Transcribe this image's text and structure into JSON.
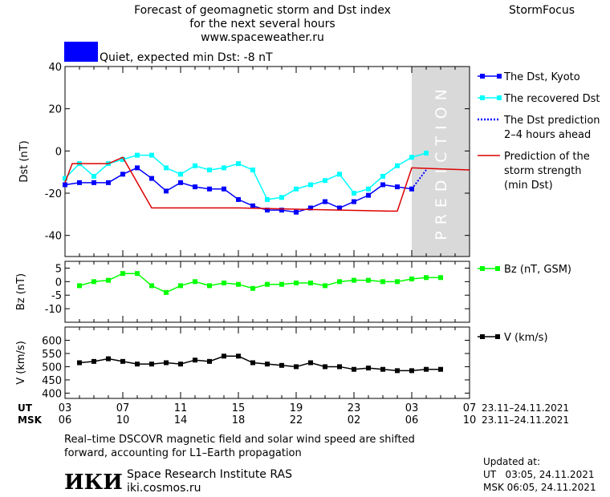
{
  "header": {
    "title_lines": [
      "Forecast of geomagnetic storm and Dst index",
      "for the next several hours",
      "www.spaceweather.ru"
    ],
    "brand": "StormFocus",
    "status_text": "Quiet, expected min Dst: -8 nT",
    "status_color": "#0000ff"
  },
  "prediction_label": "PREDICTION",
  "time_axis": {
    "ut_label": "UT",
    "msk_label": "MSK",
    "ut_ticks": [
      "03",
      "07",
      "11",
      "15",
      "19",
      "23",
      "03",
      "07"
    ],
    "msk_ticks": [
      "06",
      "10",
      "14",
      "18",
      "22",
      "02",
      "06",
      "10"
    ],
    "ut_range": "23.11–24.11.2021",
    "msk_range": "23.11–24.11.2021"
  },
  "chart_data": [
    {
      "type": "line",
      "ylabel": "Dst (nT)",
      "ylim": [
        -50,
        40
      ],
      "yticks": [
        40,
        20,
        0,
        -20,
        -40
      ],
      "xlim": [
        0,
        28
      ],
      "prediction_window": [
        24,
        28
      ],
      "series": [
        {
          "name": "The Dst, Kyoto",
          "color": "#0000ff",
          "marker": "square",
          "x": [
            0,
            1,
            2,
            3,
            4,
            5,
            6,
            7,
            8,
            9,
            10,
            11,
            12,
            13,
            14,
            15,
            16,
            17,
            18,
            19,
            20,
            21,
            22,
            23,
            24
          ],
          "values": [
            -16,
            -15,
            -15,
            -15,
            -11,
            -8,
            -13,
            -19,
            -15,
            -17,
            -18,
            -18,
            -23,
            -26,
            -28,
            -28,
            -29,
            -27,
            -24,
            -27,
            -24,
            -21,
            -16,
            -17,
            -18
          ]
        },
        {
          "name": "The recovered Dst",
          "color": "#00ffff",
          "marker": "square",
          "x": [
            0,
            1,
            2,
            3,
            4,
            5,
            6,
            7,
            8,
            9,
            10,
            11,
            12,
            13,
            14,
            15,
            16,
            17,
            18,
            19,
            20,
            21,
            22,
            23,
            24,
            25
          ],
          "values": [
            -13,
            -6,
            -12,
            -6,
            -4,
            -2,
            -2,
            -8,
            -11,
            -7,
            -9,
            -8,
            -6,
            -9,
            -23,
            -22,
            -18,
            -16,
            -14,
            -11,
            -20,
            -18,
            -12,
            -7,
            -3,
            -1
          ]
        },
        {
          "name": "The Dst prediction 2–4 hours ahead",
          "color": "#0000ff",
          "style": "dotted",
          "x": [
            24,
            25
          ],
          "values": [
            -18,
            -9
          ]
        },
        {
          "name": "Prediction of the storm strength (min Dst)",
          "color": "#dd0000",
          "x": [
            0,
            0.5,
            3,
            4,
            6,
            12,
            22.5,
            23,
            24,
            28
          ],
          "values": [
            -15,
            -6,
            -6,
            -3,
            -27,
            -27,
            -28.5,
            -28.5,
            -8,
            -9
          ]
        }
      ]
    },
    {
      "type": "line",
      "ylabel": "Bz (nT)",
      "ylim": [
        -15,
        7.5
      ],
      "yticks": [
        5,
        0,
        -5,
        -10
      ],
      "xlim": [
        0,
        28
      ],
      "series": [
        {
          "name": "Bz (nT, GSM)",
          "color": "#00ff00",
          "marker": "square",
          "x": [
            1,
            2,
            3,
            4,
            5,
            6,
            7,
            8,
            9,
            10,
            11,
            12,
            13,
            14,
            15,
            16,
            17,
            18,
            19,
            20,
            21,
            22,
            23,
            24,
            25,
            26,
            27,
            28,
            29
          ],
          "values": [
            -1.5,
            0,
            0.5,
            3,
            3,
            -1.5,
            -4,
            -1.5,
            0,
            -1.5,
            -0.5,
            -1,
            -2.5,
            -1,
            -1,
            -0.5,
            -0.5,
            -1.5,
            0,
            0.5,
            0.5,
            0,
            0,
            1,
            1.5,
            1.5,
            null,
            null,
            null
          ]
        }
      ]
    },
    {
      "type": "line",
      "ylabel": "V (km/s)",
      "ylim": [
        380,
        650
      ],
      "yticks": [
        600,
        550,
        500,
        450,
        400
      ],
      "xlim": [
        0,
        28
      ],
      "series": [
        {
          "name": "V (km/s)",
          "color": "#000000",
          "marker": "square",
          "x": [
            1,
            2,
            3,
            4,
            5,
            6,
            7,
            8,
            9,
            10,
            11,
            12,
            13,
            14,
            15,
            16,
            17,
            18,
            19,
            20,
            21,
            22,
            23,
            24,
            25,
            26
          ],
          "values": [
            515,
            520,
            530,
            520,
            510,
            510,
            515,
            510,
            525,
            520,
            540,
            540,
            515,
            510,
            505,
            500,
            515,
            500,
            500,
            490,
            495,
            490,
            485,
            485,
            490,
            490
          ]
        }
      ]
    }
  ],
  "legends": {
    "dst": [
      {
        "lines": [
          "The Dst, Kyoto"
        ],
        "color": "#0000ff",
        "style": "solid-square"
      },
      {
        "lines": [
          "The recovered Dst"
        ],
        "color": "#00ffff",
        "style": "solid-square"
      },
      {
        "lines": [
          "The Dst prediction",
          "2–4 hours ahead"
        ],
        "color": "#0000ff",
        "style": "dotted"
      },
      {
        "lines": [
          "Prediction of the",
          "storm strength",
          "(min Dst)"
        ],
        "color": "#dd0000",
        "style": "solid"
      }
    ],
    "bz": {
      "lines": [
        "Bz (nT, GSM)"
      ],
      "color": "#00ff00"
    },
    "v": {
      "lines": [
        "V (km/s)"
      ],
      "color": "#000000"
    }
  },
  "footer": {
    "note_lines": [
      "Real–time DSCOVR magnetic field and solar wind speed are shifted",
      "forward, accounting for L1–Earth propagation"
    ],
    "logo_text": "ИКИ",
    "institute": "Space Research Institute RAS",
    "website": "iki.cosmos.ru",
    "updated_label": "Updated at:",
    "updated_ut": "UT   03:05, 24.11.2021",
    "updated_msk": "MSK 06:05, 24.11.2021"
  }
}
